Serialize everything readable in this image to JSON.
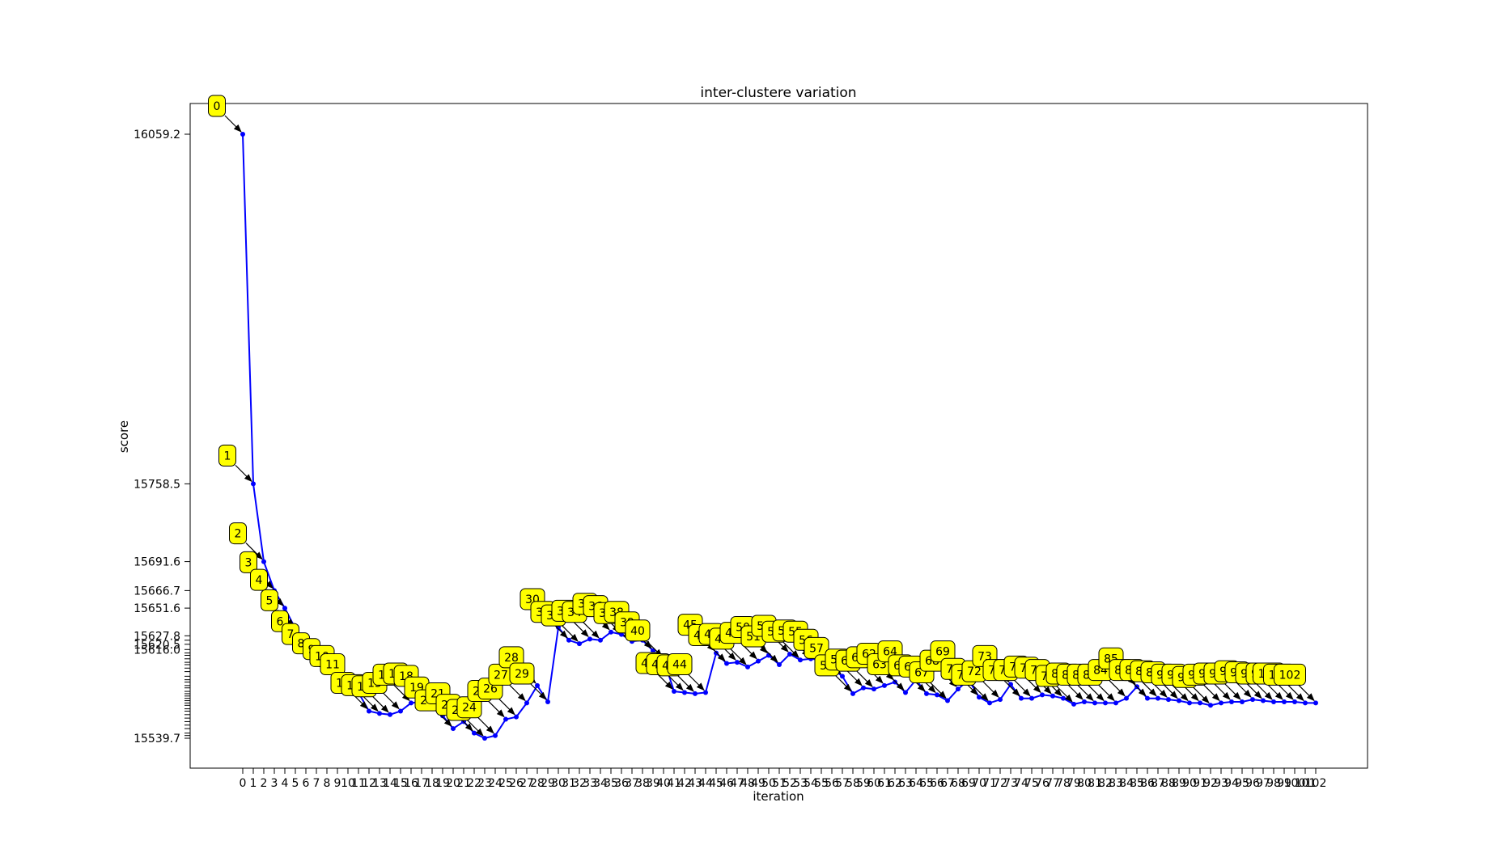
{
  "chart_data": {
    "type": "line",
    "title": "inter-clustere variation",
    "xlabel": "iteration",
    "ylabel": "score",
    "x": [
      0,
      1,
      2,
      3,
      4,
      5,
      6,
      7,
      8,
      9,
      10,
      11,
      12,
      13,
      14,
      15,
      16,
      17,
      18,
      19,
      20,
      21,
      22,
      23,
      24,
      25,
      26,
      27,
      28,
      29,
      30,
      31,
      32,
      33,
      34,
      35,
      36,
      37,
      38,
      39,
      40,
      41,
      42,
      43,
      44,
      45,
      46,
      47,
      48,
      49,
      50,
      51,
      52,
      53,
      54,
      55,
      56,
      57,
      58,
      59,
      60,
      61,
      62,
      63,
      64,
      65,
      66,
      67,
      68,
      69,
      70,
      71,
      72,
      73,
      74,
      75,
      76,
      77,
      78,
      79,
      80,
      81,
      82,
      83,
      84,
      85,
      86,
      87,
      88,
      89,
      90,
      91,
      92,
      93,
      94,
      95,
      96,
      97,
      98,
      99,
      100,
      101,
      102
    ],
    "series": [
      {
        "values": [
          16059.2,
          15758.5,
          15691.6,
          15666.7,
          15651.6,
          15634.0,
          15616.0,
          15605.0,
          15597.0,
          15592.0,
          15586.0,
          15579.0,
          15563.0,
          15561.0,
          15560.0,
          15563.0,
          15570.0,
          15571.0,
          15569.0,
          15559.0,
          15548.0,
          15554.0,
          15544.1,
          15539.7,
          15542.0,
          15556.0,
          15558.0,
          15570.0,
          15585.0,
          15571.0,
          15635.0,
          15624.0,
          15621.0,
          15625.0,
          15624.0,
          15631.0,
          15629.0,
          15623.0,
          15624.0,
          15615.0,
          15608.0,
          15580.0,
          15579.0,
          15578.0,
          15579.0,
          15613.0,
          15604.0,
          15605.0,
          15601.0,
          15606.0,
          15611.0,
          15603.0,
          15612.0,
          15607.0,
          15608.0,
          15607.0,
          15600.0,
          15593.0,
          15578.0,
          15583.0,
          15582.0,
          15585.0,
          15588.0,
          15579.0,
          15590.0,
          15578.0,
          15577.0,
          15572.0,
          15582.0,
          15590.0,
          15575.0,
          15570.0,
          15573.0,
          15586.0,
          15574.0,
          15574.0,
          15577.0,
          15576.0,
          15574.0,
          15569.0,
          15571.0,
          15570.0,
          15570.0,
          15570.0,
          15574.0,
          15584.0,
          15574.0,
          15574.0,
          15573.0,
          15572.0,
          15570.0,
          15570.0,
          15568.0,
          15570.0,
          15571.0,
          15571.0,
          15573.0,
          15572.0,
          15571.0,
          15571.0,
          15571.0,
          15570.0,
          15570.0
        ]
      }
    ],
    "yticks": [
      "16059.2",
      "15758.5",
      "15691.6",
      "15666.7",
      "15651.6",
      "15627.8",
      "15620.5",
      "15616.0",
      "15539.7"
    ],
    "extra_yticks": [
      15624.0,
      15613.0,
      15611.0,
      15608.0,
      15605.0,
      15603.0,
      15600.0,
      15597.0,
      15593.0,
      15590.0,
      15588.0,
      15585.0,
      15583.0,
      15580.0,
      15578.0,
      15576.0,
      15574.0,
      15572.0,
      15570.0,
      15568.0,
      15565.0,
      15563.0,
      15560.0,
      15557.0,
      15554.0,
      15551.0,
      15548.0,
      15544.1,
      15542.0
    ],
    "grid": false,
    "legend": false,
    "color": "#0000ff",
    "annotation_color": "#ffff00"
  }
}
